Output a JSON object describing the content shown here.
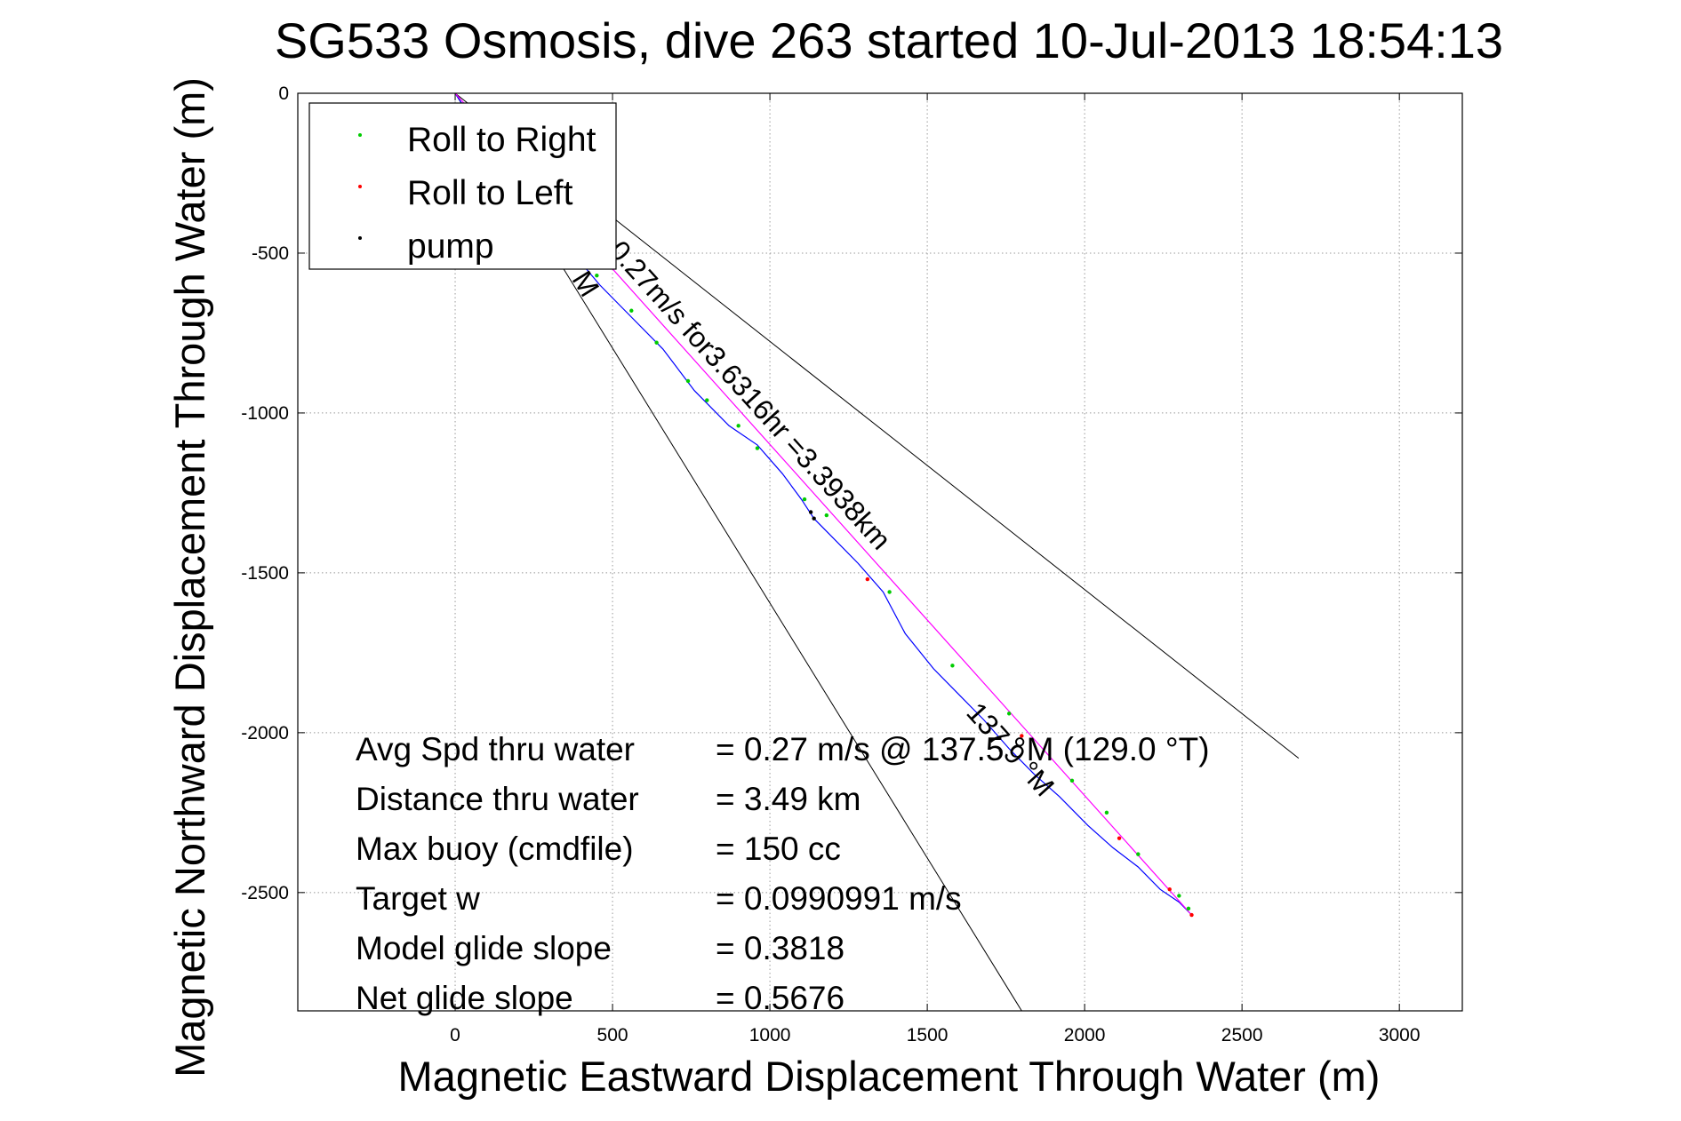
{
  "chart_data": {
    "type": "line",
    "title": "SG533 Osmosis, dive 263 started 10-Jul-2013 18:54:13",
    "xlabel": "Magnetic Eastward Displacement Through Water (m)",
    "ylabel": "Magnetic Northward Displacement Through Water (m)",
    "xlim": [
      -500,
      3200
    ],
    "ylim": [
      -2870,
      0
    ],
    "xticks": [
      0,
      500,
      1000,
      1500,
      2000,
      2500,
      3000
    ],
    "yticks": [
      0,
      -500,
      -1000,
      -1500,
      -2000,
      -2500
    ],
    "grid": true,
    "legend_position": "top-left",
    "legend": [
      "Roll to Right",
      "Roll to Left",
      "pump"
    ],
    "series": [
      {
        "name": "track",
        "color": "#0000ff",
        "x": [
          0,
          40,
          120,
          230,
          340,
          460,
          560,
          660,
          760,
          870,
          960,
          1040,
          1100,
          1140,
          1200,
          1280,
          1360,
          1430,
          1520,
          1600,
          1680,
          1760,
          1840,
          1920,
          2010,
          2090,
          2170,
          2240,
          2300,
          2340
        ],
        "y": [
          0,
          -60,
          -180,
          -320,
          -460,
          -600,
          -700,
          -800,
          -930,
          -1040,
          -1100,
          -1190,
          -1270,
          -1330,
          -1390,
          -1470,
          -1560,
          -1690,
          -1800,
          -1880,
          -1960,
          -2050,
          -2130,
          -2200,
          -2290,
          -2360,
          -2420,
          -2490,
          -2530,
          -2570
        ]
      },
      {
        "name": "dead reckoning",
        "color": "#ff00ff",
        "x": [
          0,
          2340
        ],
        "y": [
          0,
          -2570
        ]
      }
    ],
    "roll_right_points": [
      [
        40,
        -70
      ],
      [
        150,
        -210
      ],
      [
        300,
        -420
      ],
      [
        450,
        -570
      ],
      [
        560,
        -680
      ],
      [
        640,
        -780
      ],
      [
        740,
        -900
      ],
      [
        800,
        -960
      ],
      [
        900,
        -1040
      ],
      [
        960,
        -1110
      ],
      [
        1110,
        -1270
      ],
      [
        1180,
        -1320
      ],
      [
        1380,
        -1560
      ],
      [
        1580,
        -1790
      ],
      [
        1760,
        -1940
      ],
      [
        1960,
        -2150
      ],
      [
        2070,
        -2250
      ],
      [
        2170,
        -2380
      ],
      [
        2300,
        -2510
      ],
      [
        2330,
        -2550
      ]
    ],
    "roll_left_points": [
      [
        1310,
        -1520
      ],
      [
        1800,
        -2010
      ],
      [
        2110,
        -2330
      ],
      [
        2270,
        -2490
      ],
      [
        2340,
        -2570
      ]
    ],
    "pump_points": [
      [
        1130,
        -1310
      ],
      [
        1140,
        -1330
      ]
    ],
    "bounding_lines": [
      {
        "x": [
          0,
          2680
        ],
        "y": [
          0,
          -2080
        ]
      },
      {
        "x": [
          0,
          1800
        ],
        "y": [
          0,
          -2870
        ]
      }
    ],
    "annotations": [
      {
        "text": "0.27m/s for3.6316hr =3.3938km",
        "x": 485,
        "y": -495,
        "rotation_deg": 48
      },
      {
        "text": "137.9 °M",
        "x": 1620,
        "y": -1940,
        "rotation_deg": 48
      },
      {
        "text": "°M",
        "x": 350,
        "y": -550,
        "rotation_deg": 58
      }
    ],
    "stats": [
      {
        "label": "Avg Spd thru water",
        "value": "=  0.27 m/s @ 137.5 °M (129.0 °T)"
      },
      {
        "label": "Distance thru water",
        "value": "=  3.49 km"
      },
      {
        "label": "Max buoy (cmdfile)",
        "value": "= 150 cc"
      },
      {
        "label": "Target w",
        "value": "= 0.0990991 m/s"
      },
      {
        "label": "Model glide slope",
        "value": "= 0.3818"
      },
      {
        "label": "Net glide slope",
        "value": "= 0.5676"
      }
    ],
    "colors": {
      "roll_right": "#00cc00",
      "roll_left": "#ff0000",
      "pump": "#000000",
      "track": "#0000ff",
      "dead_reckoning": "#ff00ff",
      "bounding": "#000000"
    }
  }
}
